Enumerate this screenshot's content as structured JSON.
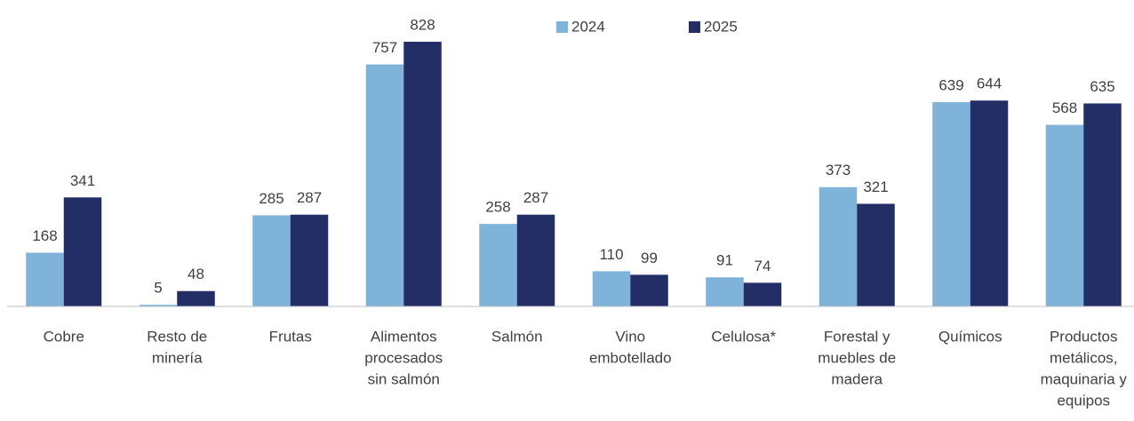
{
  "chart_data": {
    "type": "bar",
    "categories": [
      [
        "Cobre"
      ],
      [
        "Resto de",
        "minería"
      ],
      [
        "Frutas"
      ],
      [
        "Alimentos",
        "procesados",
        "sin salmón"
      ],
      [
        "Salmón"
      ],
      [
        "Vino",
        "embotellado"
      ],
      [
        "Celulosa*"
      ],
      [
        "Forestal y",
        "muebles de",
        "madera"
      ],
      [
        "Químicos"
      ],
      [
        "Productos",
        "metálicos,",
        "maquinaria y",
        "equipos"
      ]
    ],
    "series": [
      {
        "name": "2024",
        "color": "#7fb3da",
        "values": [
          168,
          5,
          285,
          757,
          258,
          110,
          91,
          373,
          639,
          568
        ]
      },
      {
        "name": "2025",
        "color": "#232d66",
        "values": [
          341,
          48,
          287,
          828,
          287,
          99,
          74,
          321,
          644,
          635
        ]
      }
    ],
    "legend": "top"
  }
}
